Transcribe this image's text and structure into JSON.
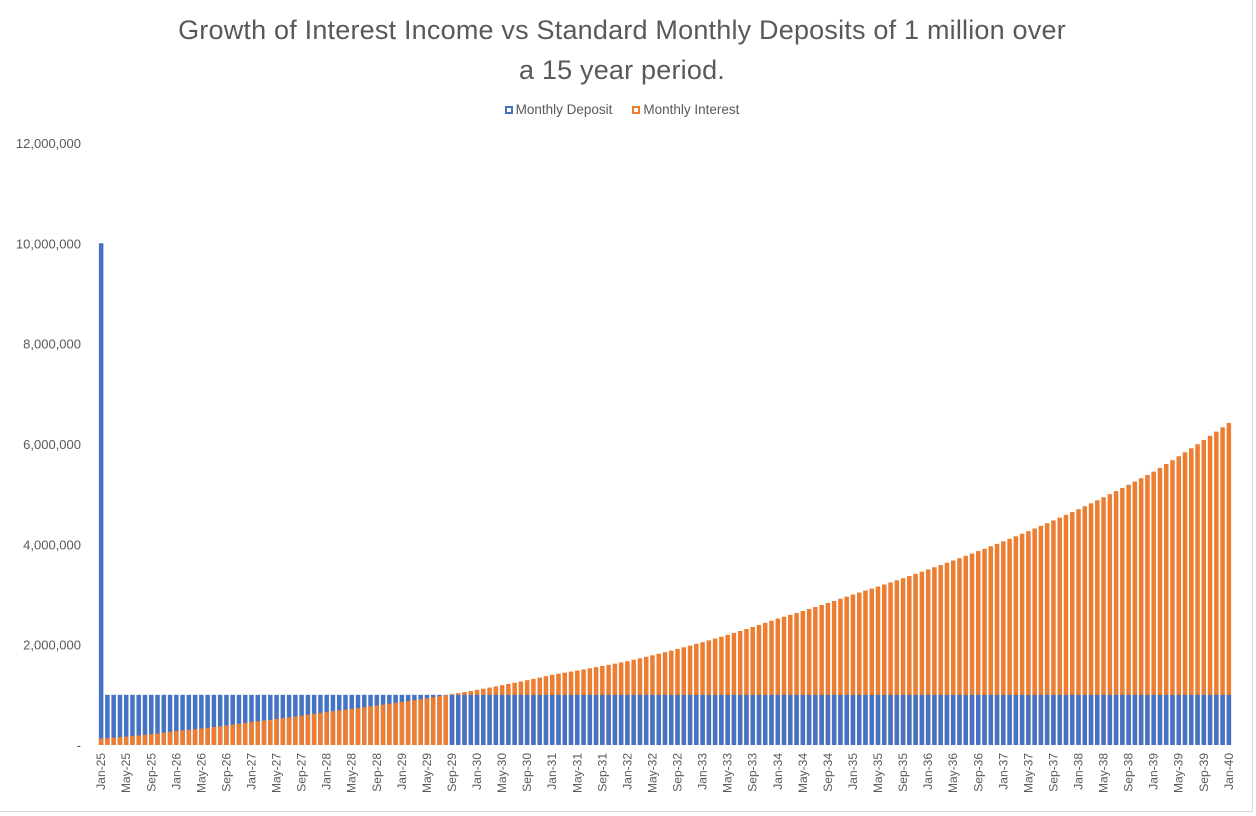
{
  "chart_data": {
    "type": "bar",
    "stacked": false,
    "title_line1": "Growth of Interest Income vs Standard Monthly Deposits of 1 million over",
    "title_line2": "a 15 year period.",
    "xlabel": "",
    "ylabel": "",
    "ylim": [
      0,
      12000000
    ],
    "yticks": [
      0,
      2000000,
      4000000,
      6000000,
      8000000,
      10000000,
      12000000
    ],
    "ytick_labels": [
      "-",
      "2,000,000",
      "4,000,000",
      "6,000,000",
      "8,000,000",
      "10,000,000",
      "12,000,000"
    ],
    "x_start": "Jan-25",
    "x_end": "Jan-40",
    "num_periods": 181,
    "x_label_every": 4,
    "x_tick_labels": [
      "Jan-25",
      "May-25",
      "Sep-25",
      "Jan-26",
      "May-26",
      "Sep-26",
      "Jan-27",
      "May-27",
      "Sep-27",
      "Jan-28",
      "May-28",
      "Sep-28",
      "Jan-29",
      "May-29",
      "Sep-29",
      "Jan-30",
      "May-30",
      "Sep-30",
      "Jan-31",
      "May-31",
      "Sep-31",
      "Jan-32",
      "May-32",
      "Sep-32",
      "Jan-33",
      "May-33",
      "Sep-33",
      "Jan-34",
      "May-34",
      "Sep-34",
      "Jan-35",
      "May-35",
      "Sep-35",
      "Jan-36",
      "May-36",
      "Sep-36",
      "Jan-37",
      "May-37",
      "Sep-37",
      "Jan-38",
      "May-38",
      "Sep-38",
      "Jan-39",
      "May-39",
      "Sep-39",
      "Jan-40"
    ],
    "series": [
      {
        "name": "Monthly Deposit",
        "color": "#4472c4",
        "description": "10,000,000 in Jan-25, then 1,000,000 every month",
        "first_value": 10000000,
        "constant_value": 1000000
      },
      {
        "name": "Monthly Interest",
        "color": "#ed7d31",
        "description": "Grows smoothly from about 130,000 in Jan-25 to about 6,400,000 in Jan-40; crosses 1,000,000 around Aug-29",
        "anchor_values": [
          {
            "period": "Jan-25",
            "value": 130000
          },
          {
            "period": "Jan-26",
            "value": 280000
          },
          {
            "period": "Jan-27",
            "value": 460000
          },
          {
            "period": "Jan-28",
            "value": 660000
          },
          {
            "period": "Jan-29",
            "value": 860000
          },
          {
            "period": "Jan-30",
            "value": 1100000
          },
          {
            "period": "Jan-31",
            "value": 1400000
          },
          {
            "period": "Jan-32",
            "value": 1670000
          },
          {
            "period": "Jan-33",
            "value": 2050000
          },
          {
            "period": "Jan-34",
            "value": 2520000
          },
          {
            "period": "Jan-35",
            "value": 3000000
          },
          {
            "period": "Jan-36",
            "value": 3500000
          },
          {
            "period": "Jan-37",
            "value": 4060000
          },
          {
            "period": "Jan-38",
            "value": 4700000
          },
          {
            "period": "Jan-39",
            "value": 5450000
          },
          {
            "period": "Jan-40",
            "value": 6420000
          }
        ]
      }
    ],
    "legend_position": "top-center",
    "grid": false
  }
}
